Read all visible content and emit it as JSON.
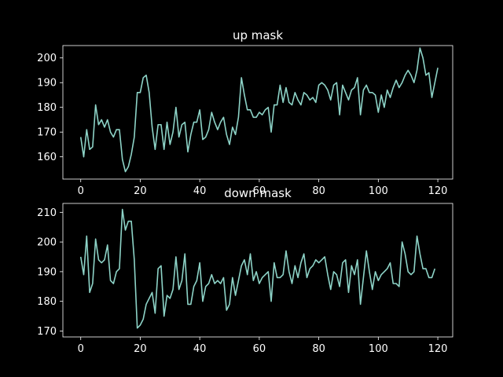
{
  "chart_data": [
    {
      "type": "line",
      "title": "up mask",
      "xlabel": "",
      "ylabel": "",
      "xlim": [
        -6,
        125
      ],
      "ylim": [
        151,
        205
      ],
      "xticks": [
        0,
        20,
        40,
        60,
        80,
        100,
        120
      ],
      "yticks": [
        160,
        170,
        180,
        190,
        200
      ],
      "grid": false,
      "background": "#000000",
      "foreground": "#ffffff",
      "line_color": "#8dd3c7",
      "x_start": 0,
      "x_step": 1,
      "values": [
        168,
        160,
        171,
        163,
        164,
        181,
        173,
        175,
        172,
        175,
        170,
        168,
        171,
        171,
        159,
        154,
        156,
        161,
        168,
        186,
        186,
        192,
        193,
        186,
        172,
        163,
        173,
        173,
        163,
        174,
        165,
        170,
        180,
        168,
        173,
        174,
        162,
        169,
        174,
        174,
        179,
        167,
        168,
        171,
        178,
        174,
        171,
        174,
        176,
        169,
        165,
        172,
        169,
        176,
        192,
        185,
        179,
        179,
        176,
        176,
        178,
        177,
        179,
        180,
        170,
        181,
        181,
        189,
        182,
        188,
        182,
        181,
        186,
        183,
        181,
        186,
        185,
        183,
        184,
        182,
        189,
        190,
        189,
        187,
        183,
        189,
        190,
        177,
        189,
        186,
        183,
        187,
        188,
        192,
        177,
        187,
        189,
        186,
        186,
        185,
        178,
        185,
        180,
        187,
        184,
        188,
        191,
        188,
        190,
        193,
        195,
        193,
        190,
        195,
        204,
        200,
        193,
        194,
        184,
        190,
        196
      ]
    },
    {
      "type": "line",
      "title": "down mask",
      "xlabel": "",
      "ylabel": "",
      "xlim": [
        -6,
        125
      ],
      "ylim": [
        168,
        213
      ],
      "xticks": [
        0,
        20,
        40,
        60,
        80,
        100,
        120
      ],
      "yticks": [
        170,
        180,
        190,
        200,
        210
      ],
      "grid": false,
      "background": "#000000",
      "foreground": "#ffffff",
      "line_color": "#8dd3c7",
      "x_start": 0,
      "x_step": 1,
      "values": [
        195,
        189,
        202,
        183,
        186,
        201,
        194,
        193,
        194,
        199,
        187,
        186,
        190,
        191,
        211,
        204,
        207,
        207,
        194,
        171,
        172,
        174,
        179,
        181,
        183,
        176,
        191,
        192,
        175,
        182,
        181,
        184,
        195,
        184,
        187,
        196,
        179,
        179,
        185,
        187,
        193,
        180,
        185,
        186,
        189,
        186,
        187,
        186,
        188,
        177,
        179,
        188,
        182,
        187,
        192,
        194,
        189,
        196,
        187,
        190,
        186,
        188,
        189,
        190,
        180,
        193,
        188,
        188,
        189,
        197,
        190,
        186,
        192,
        188,
        193,
        196,
        188,
        191,
        192,
        194,
        193,
        194,
        195,
        189,
        184,
        190,
        189,
        185,
        193,
        194,
        183,
        192,
        189,
        194,
        179,
        188,
        197,
        190,
        184,
        190,
        187,
        189,
        190,
        191,
        193,
        186,
        186,
        185,
        200,
        196,
        190,
        189,
        190,
        202,
        196,
        191,
        191,
        188,
        188,
        191
      ]
    }
  ]
}
